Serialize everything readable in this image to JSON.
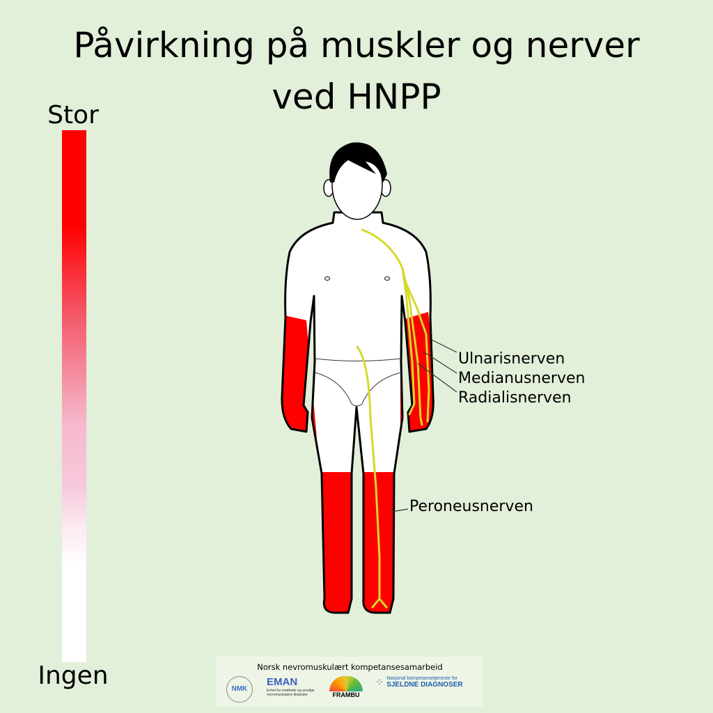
{
  "title": {
    "line1": "Påvirkning på muskler og nerver",
    "line2": "ved HNPP"
  },
  "scale": {
    "top_label": "Stor",
    "bottom_label": "Ingen",
    "colors": [
      "#ff0000",
      "#f7c9dc",
      "#ffffff"
    ]
  },
  "nerves": {
    "ulnaris": "Ulnarisnerven",
    "medianus": "Medianusnerven",
    "radialis": "Radialisnerven",
    "peroneus": "Peroneusnerven"
  },
  "colors": {
    "background": "#e2efd9",
    "affected": "#ff0000",
    "nerve": "#d4d92a"
  },
  "footer": {
    "heading": "Norsk nevromuskulært kompetansesamarbeid",
    "logos": {
      "nmk": "NMK",
      "nmk_ring": "NEVROMUSKULÆRT KOMPETANSESENTER",
      "eman": "EMAN",
      "eman_sub": "Enhet for medfødte og arvelige nevromuskulære tilstander",
      "frambu": "FRAMBU",
      "sjeldne_top": "Nasjonal kompetansetjeneste for",
      "sjeldne": "SJELDNE DIAGNOSER"
    }
  }
}
